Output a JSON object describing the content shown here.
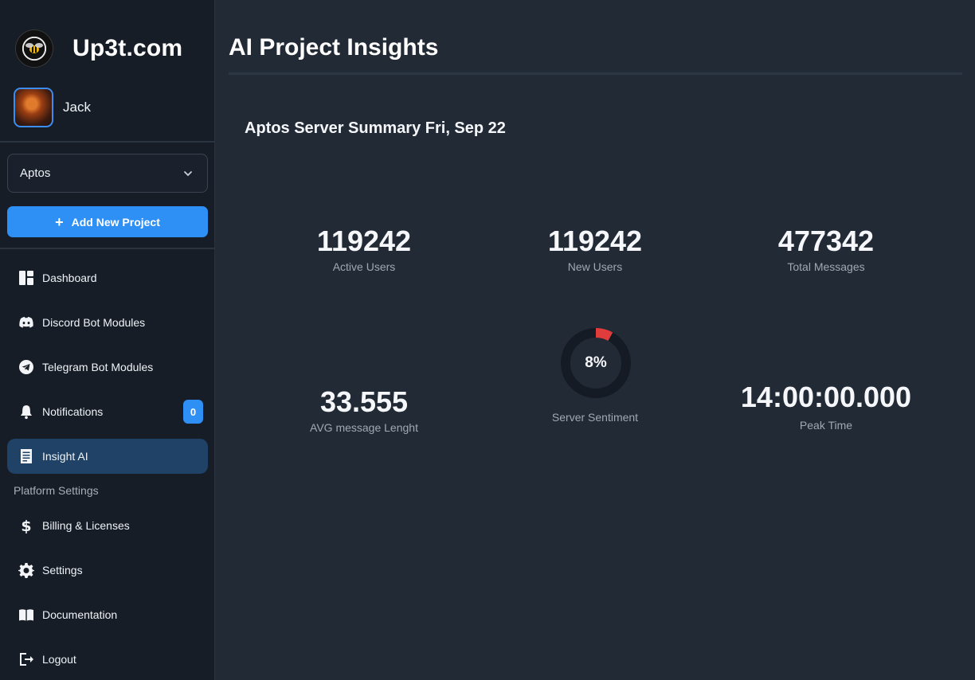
{
  "brand": {
    "name": "Up3t.com",
    "logo_icon": "bee-logo-icon"
  },
  "user": {
    "name": "Jack"
  },
  "project_select": {
    "value": "Aptos"
  },
  "add_button": {
    "label": "Add New Project",
    "icon": "plus-icon"
  },
  "nav": {
    "items": [
      {
        "label": "Dashboard",
        "icon": "dashboard-icon"
      },
      {
        "label": "Discord Bot Modules",
        "icon": "discord-icon"
      },
      {
        "label": "Telegram Bot Modules",
        "icon": "telegram-icon"
      },
      {
        "label": "Notifications",
        "icon": "bell-icon",
        "badge": "0"
      },
      {
        "label": "Insight AI",
        "icon": "document-list-icon",
        "active": true
      }
    ],
    "section_label": "Platform Settings",
    "settings_items": [
      {
        "label": "Billing & Licenses",
        "icon": "dollar-icon"
      },
      {
        "label": "Settings",
        "icon": "gear-icon"
      },
      {
        "label": "Documentation",
        "icon": "book-icon"
      },
      {
        "label": "Logout",
        "icon": "logout-icon"
      }
    ]
  },
  "main": {
    "title": "AI Project Insights",
    "summary": "Aptos Server Summary Fri, Sep 22",
    "stats": {
      "active_users": {
        "value": "119242",
        "label": "Active Users"
      },
      "new_users": {
        "value": "119242",
        "label": "New Users"
      },
      "total_messages": {
        "value": "477342",
        "label": "Total Messages"
      },
      "avg_length": {
        "value": "33.555",
        "label": "AVG message Lenght"
      },
      "sentiment": {
        "value": "8%",
        "percent": 8,
        "label": "Server Sentiment"
      },
      "peak_time": {
        "value": "14:00:00.000",
        "label": "Peak Time"
      }
    }
  },
  "colors": {
    "accent": "#2e8ff5",
    "gauge_fill": "#e03c3c",
    "gauge_track": "#141b24",
    "sidebar_bg": "#161d27",
    "main_bg": "#222a36"
  }
}
